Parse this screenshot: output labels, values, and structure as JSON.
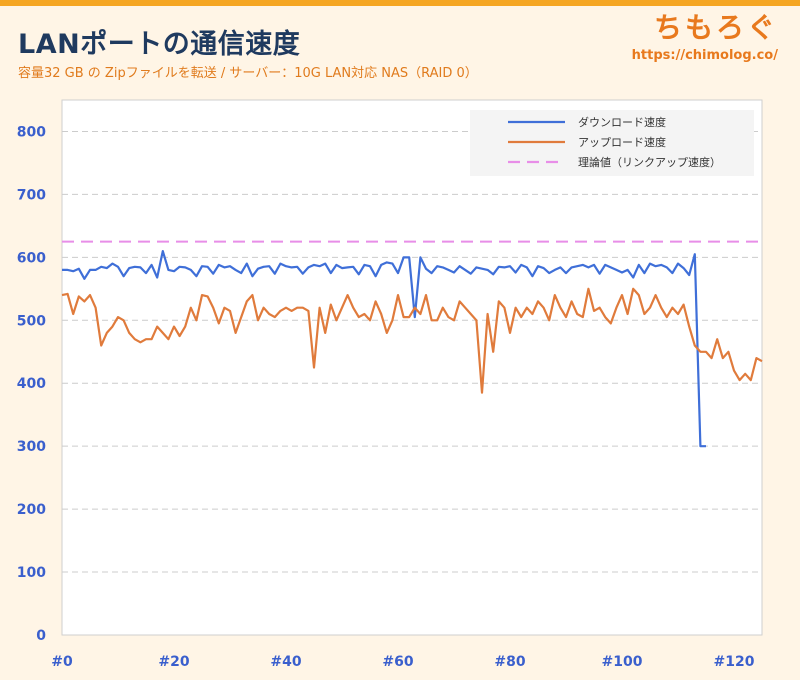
{
  "header": {
    "title": "LANポートの通信速度",
    "subtitle": "容量32 GB の Zipファイルを転送 / サーバー：10G LAN対応 NAS（RAID 0）"
  },
  "brand": {
    "name": "ちもろぐ",
    "url": "https://chimolog.co/"
  },
  "colors": {
    "background": "#fff5e6",
    "accent": "#f5a623",
    "download": "#3f6fd8",
    "upload": "#e07b3c",
    "theoretical": "#e88ee8"
  },
  "chart_data": {
    "type": "line",
    "title": "",
    "xlabel": "",
    "ylabel": "",
    "xlim": [
      0,
      125
    ],
    "ylim": [
      0,
      850
    ],
    "yticks": [
      0,
      100,
      200,
      300,
      400,
      500,
      600,
      700,
      800
    ],
    "xticks": [
      "#0",
      "#20",
      "#40",
      "#60",
      "#80",
      "#100",
      "#120"
    ],
    "xtick_values": [
      0,
      20,
      40,
      60,
      80,
      100,
      120
    ],
    "grid": true,
    "legend_position": "top-right",
    "series": [
      {
        "name": "ダウンロード速度",
        "color": "#3f6fd8",
        "style": "solid",
        "x": [
          0,
          1,
          2,
          3,
          4,
          5,
          6,
          7,
          8,
          9,
          10,
          11,
          12,
          13,
          14,
          15,
          16,
          17,
          18,
          19,
          20,
          21,
          22,
          23,
          24,
          25,
          26,
          27,
          28,
          29,
          30,
          31,
          32,
          33,
          34,
          35,
          36,
          37,
          38,
          39,
          40,
          41,
          42,
          43,
          44,
          45,
          46,
          47,
          48,
          49,
          50,
          51,
          52,
          53,
          54,
          55,
          56,
          57,
          58,
          59,
          60,
          61,
          62,
          63,
          64,
          65,
          66,
          67,
          68,
          69,
          70,
          71,
          72,
          73,
          74,
          75,
          76,
          77,
          78,
          79,
          80,
          81,
          82,
          83,
          84,
          85,
          86,
          87,
          88,
          89,
          90,
          91,
          92,
          93,
          94,
          95,
          96,
          97,
          98,
          99,
          100,
          101,
          102,
          103,
          104,
          105,
          106,
          107,
          108,
          109,
          110,
          111,
          112,
          113,
          114,
          115
        ],
        "y": [
          580,
          580,
          578,
          582,
          566,
          580,
          580,
          585,
          583,
          590,
          585,
          570,
          583,
          585,
          584,
          575,
          588,
          568,
          610,
          580,
          578,
          585,
          584,
          580,
          570,
          586,
          585,
          574,
          588,
          584,
          586,
          580,
          575,
          590,
          570,
          582,
          585,
          586,
          574,
          590,
          586,
          584,
          585,
          574,
          584,
          588,
          586,
          590,
          575,
          588,
          583,
          584,
          585,
          573,
          588,
          586,
          570,
          588,
          592,
          590,
          575,
          600,
          600,
          505,
          600,
          582,
          575,
          586,
          584,
          580,
          576,
          586,
          580,
          574,
          584,
          582,
          580,
          573,
          585,
          584,
          586,
          576,
          588,
          584,
          570,
          586,
          583,
          575,
          580,
          584,
          575,
          584,
          586,
          588,
          584,
          588,
          574,
          588,
          584,
          580,
          576,
          580,
          568,
          588,
          575,
          590,
          586,
          588,
          584,
          575,
          590,
          583,
          572,
          605,
          300,
          300
        ]
      },
      {
        "name": "アップロード速度",
        "color": "#e07b3c",
        "style": "solid",
        "x": [
          0,
          1,
          2,
          3,
          4,
          5,
          6,
          7,
          8,
          9,
          10,
          11,
          12,
          13,
          14,
          15,
          16,
          17,
          18,
          19,
          20,
          21,
          22,
          23,
          24,
          25,
          26,
          27,
          28,
          29,
          30,
          31,
          32,
          33,
          34,
          35,
          36,
          37,
          38,
          39,
          40,
          41,
          42,
          43,
          44,
          45,
          46,
          47,
          48,
          49,
          50,
          51,
          52,
          53,
          54,
          55,
          56,
          57,
          58,
          59,
          60,
          61,
          62,
          63,
          64,
          65,
          66,
          67,
          68,
          69,
          70,
          71,
          72,
          73,
          74,
          75,
          76,
          77,
          78,
          79,
          80,
          81,
          82,
          83,
          84,
          85,
          86,
          87,
          88,
          89,
          90,
          91,
          92,
          93,
          94,
          95,
          96,
          97,
          98,
          99,
          100,
          101,
          102,
          103,
          104,
          105,
          106,
          107,
          108,
          109,
          110,
          111,
          112,
          113,
          114,
          115,
          116,
          117,
          118,
          119,
          120,
          121,
          122,
          123,
          124,
          125
        ],
        "y": [
          540,
          542,
          510,
          538,
          530,
          540,
          520,
          460,
          480,
          490,
          505,
          500,
          480,
          470,
          465,
          470,
          470,
          490,
          480,
          470,
          490,
          475,
          490,
          520,
          500,
          540,
          538,
          520,
          495,
          520,
          515,
          480,
          505,
          530,
          540,
          500,
          520,
          510,
          505,
          515,
          520,
          515,
          520,
          520,
          515,
          425,
          520,
          480,
          525,
          500,
          520,
          540,
          520,
          505,
          510,
          500,
          530,
          510,
          480,
          500,
          540,
          505,
          505,
          520,
          510,
          540,
          500,
          500,
          520,
          505,
          500,
          530,
          520,
          510,
          500,
          385,
          510,
          450,
          530,
          520,
          480,
          520,
          505,
          520,
          510,
          530,
          520,
          500,
          540,
          520,
          505,
          530,
          510,
          505,
          550,
          515,
          520,
          505,
          495,
          520,
          540,
          510,
          550,
          540,
          510,
          520,
          540,
          520,
          505,
          520,
          510,
          525,
          490,
          460,
          450,
          450,
          440,
          470,
          440,
          450,
          420,
          405,
          415,
          405,
          440,
          435
        ]
      },
      {
        "name": "理論値（リンクアップ速度）",
        "color": "#e88ee8",
        "style": "dashed",
        "x": [
          0,
          125
        ],
        "y": [
          625,
          625
        ]
      }
    ]
  }
}
